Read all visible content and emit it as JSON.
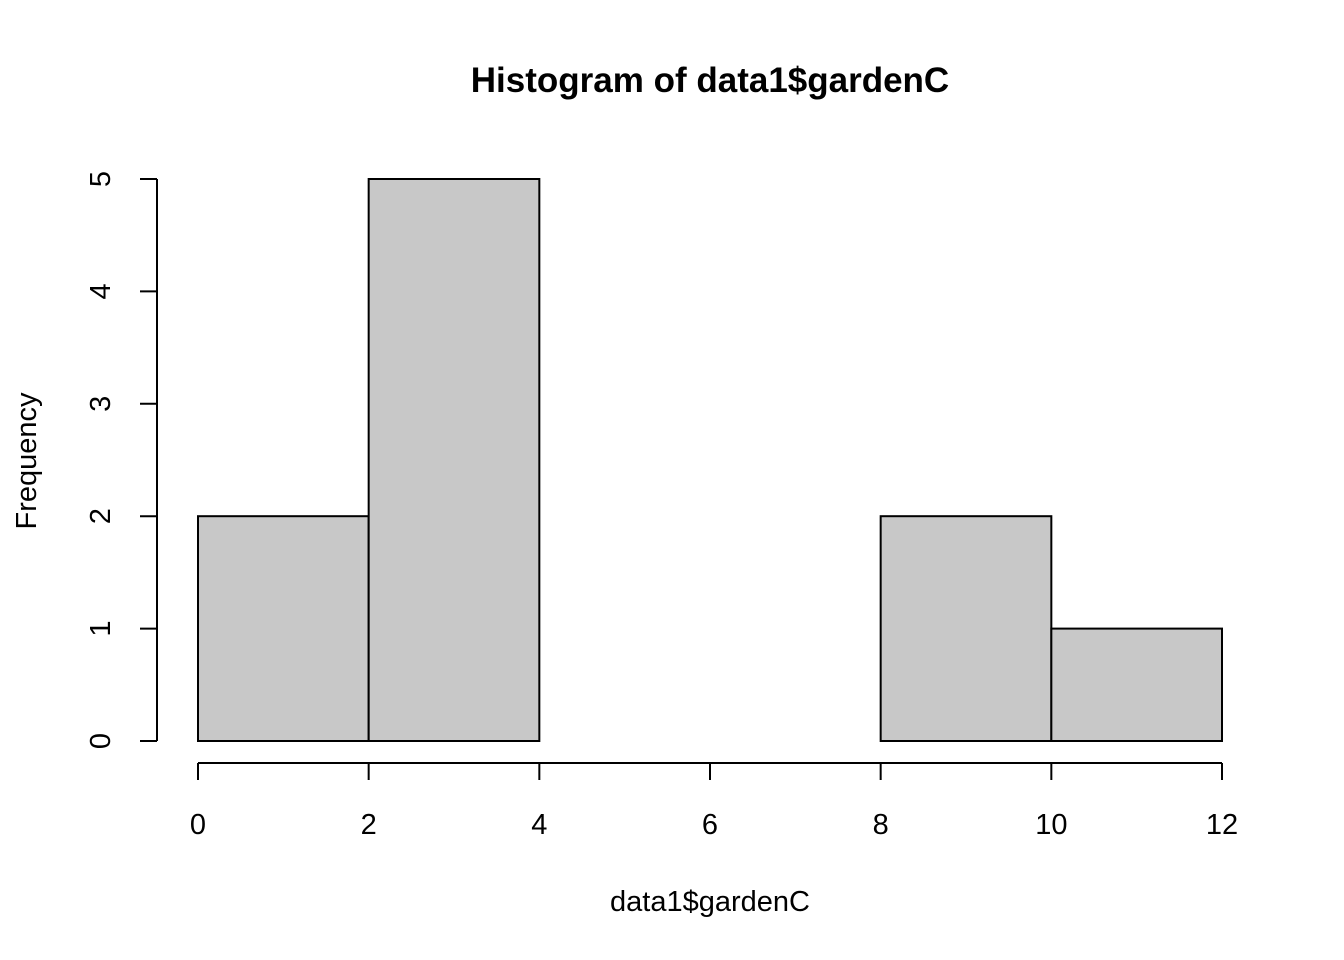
{
  "chart_data": {
    "type": "bar",
    "title": "Histogram of data1$gardenC",
    "xlabel": "data1$gardenC",
    "ylabel": "Frequency",
    "bins": [
      {
        "start": 0,
        "end": 2,
        "count": 2
      },
      {
        "start": 2,
        "end": 4,
        "count": 5
      },
      {
        "start": 4,
        "end": 6,
        "count": 0
      },
      {
        "start": 6,
        "end": 8,
        "count": 0
      },
      {
        "start": 8,
        "end": 10,
        "count": 2
      },
      {
        "start": 10,
        "end": 12,
        "count": 1
      }
    ],
    "xlim": [
      0,
      12
    ],
    "ylim": [
      0,
      5
    ],
    "xticks": [
      0,
      2,
      4,
      6,
      8,
      10,
      12
    ],
    "yticks": [
      0,
      1,
      2,
      3,
      4,
      5
    ],
    "grid": false,
    "colors": {
      "bar_fill": "#c8c8c8",
      "bar_stroke": "#000000",
      "background": "#ffffff"
    }
  }
}
